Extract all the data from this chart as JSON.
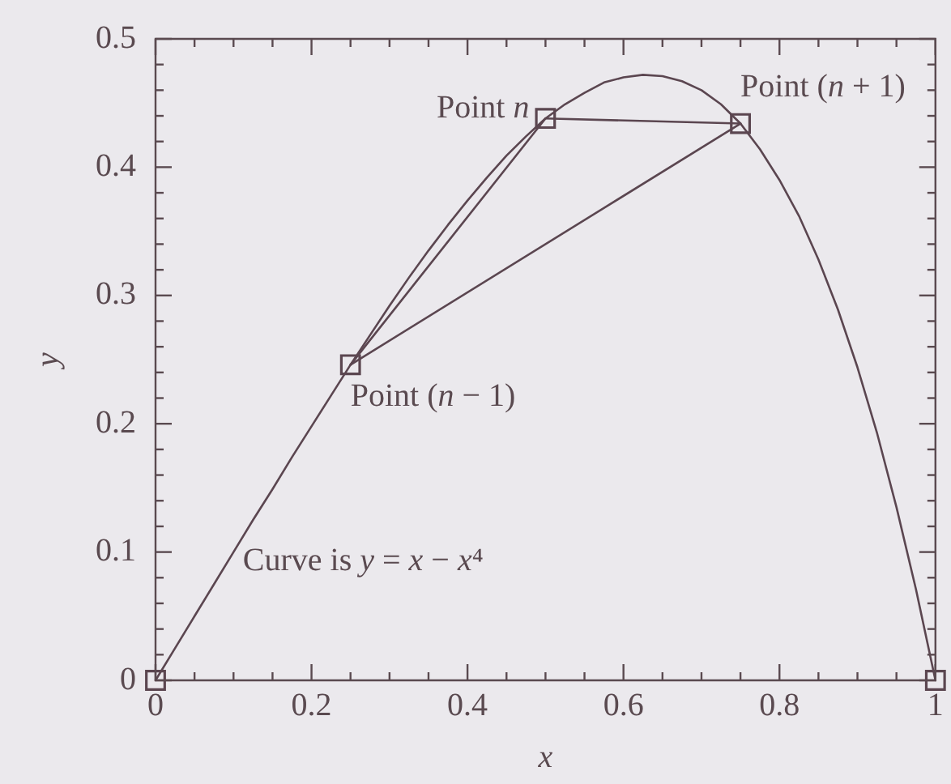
{
  "chart_data": {
    "type": "line",
    "xlabel": "x",
    "ylabel": "y",
    "xlim": [
      0,
      1
    ],
    "xticks": [
      0,
      {
        "value": 0.05,
        "label": null
      },
      {
        "value": 0.1,
        "label": null
      },
      {
        "value": 0.15,
        "label": null
      },
      0.2,
      {
        "value": 0.25,
        "label": null
      },
      {
        "value": 0.3,
        "label": null
      },
      {
        "value": 0.35,
        "label": null
      },
      0.4,
      {
        "value": 0.45,
        "label": null
      },
      {
        "value": 0.5,
        "label": null
      },
      {
        "value": 0.55,
        "label": null
      },
      0.6,
      {
        "value": 0.65,
        "label": null
      },
      {
        "value": 0.7,
        "label": null
      },
      {
        "value": 0.75,
        "label": null
      },
      0.8,
      {
        "value": 0.85,
        "label": null
      },
      {
        "value": 0.9,
        "label": null
      },
      {
        "value": 0.95,
        "label": null
      },
      1
    ],
    "ylim": [
      0,
      0.5
    ],
    "yticks": [
      0,
      {
        "value": 0.02,
        "label": null
      },
      {
        "value": 0.04,
        "label": null
      },
      {
        "value": 0.06,
        "label": null
      },
      {
        "value": 0.08,
        "label": null
      },
      0.1,
      {
        "value": 0.12,
        "label": null
      },
      {
        "value": 0.14,
        "label": null
      },
      {
        "value": 0.16,
        "label": null
      },
      {
        "value": 0.18,
        "label": null
      },
      0.2,
      {
        "value": 0.22,
        "label": null
      },
      {
        "value": 0.24,
        "label": null
      },
      {
        "value": 0.26,
        "label": null
      },
      {
        "value": 0.28,
        "label": null
      },
      0.3,
      {
        "value": 0.32,
        "label": null
      },
      {
        "value": 0.34,
        "label": null
      },
      {
        "value": 0.36,
        "label": null
      },
      {
        "value": 0.38,
        "label": null
      },
      0.4,
      {
        "value": 0.42,
        "label": null
      },
      {
        "value": 0.44,
        "label": null
      },
      {
        "value": 0.46,
        "label": null
      },
      {
        "value": 0.48,
        "label": null
      },
      0.5
    ],
    "series": [
      {
        "color": "#5b4650",
        "marker": "none",
        "x": [
          0,
          0.025,
          0.05,
          0.075,
          0.1,
          0.125,
          0.15,
          0.175,
          0.2,
          0.225,
          0.25,
          0.275,
          0.3,
          0.325,
          0.35,
          0.375,
          0.4,
          0.425,
          0.45,
          0.475,
          0.5,
          0.525,
          0.55,
          0.575,
          0.6,
          0.625,
          0.65,
          0.675,
          0.7,
          0.725,
          0.75,
          0.775,
          0.8,
          0.825,
          0.85,
          0.875,
          0.9,
          0.925,
          0.95,
          0.975,
          1
        ],
        "values": [
          0,
          0.025,
          0.05,
          0.075,
          0.1,
          0.125,
          0.149,
          0.174,
          0.198,
          0.222,
          0.246,
          0.269,
          0.292,
          0.314,
          0.335,
          0.355,
          0.374,
          0.392,
          0.409,
          0.424,
          0.438,
          0.449,
          0.458,
          0.466,
          0.47,
          0.472,
          0.471,
          0.467,
          0.46,
          0.449,
          0.434,
          0.414,
          0.39,
          0.362,
          0.328,
          0.289,
          0.244,
          0.193,
          0.135,
          0.071,
          0
        ]
      },
      {
        "color": "#5b4650",
        "marker": "none",
        "x": [
          0.25,
          0.5
        ],
        "values": [
          0.246,
          0.438
        ]
      },
      {
        "color": "#5b4650",
        "marker": "none",
        "x": [
          0.5,
          0.75
        ],
        "values": [
          0.438,
          0.434
        ]
      },
      {
        "color": "#5b4650",
        "marker": "none",
        "x": [
          0.25,
          0.75
        ],
        "values": [
          0.246,
          0.434
        ]
      },
      {
        "type": "scatter",
        "color": "#5b4650",
        "marker": "square",
        "x": [
          0,
          0.25,
          0.5,
          0.75,
          1
        ],
        "values": [
          0,
          0.246,
          0.438,
          0.434,
          0
        ]
      }
    ],
    "annotations": [
      {
        "text": "Point n",
        "x": 0.5,
        "y": 0.438
      },
      {
        "text": "Point (n + 1)",
        "x": 0.75,
        "y": 0.434
      },
      {
        "text": "Point (n − 1)",
        "x": 0.25,
        "y": 0.246
      },
      "Curve is y = x − x⁴"
    ]
  }
}
